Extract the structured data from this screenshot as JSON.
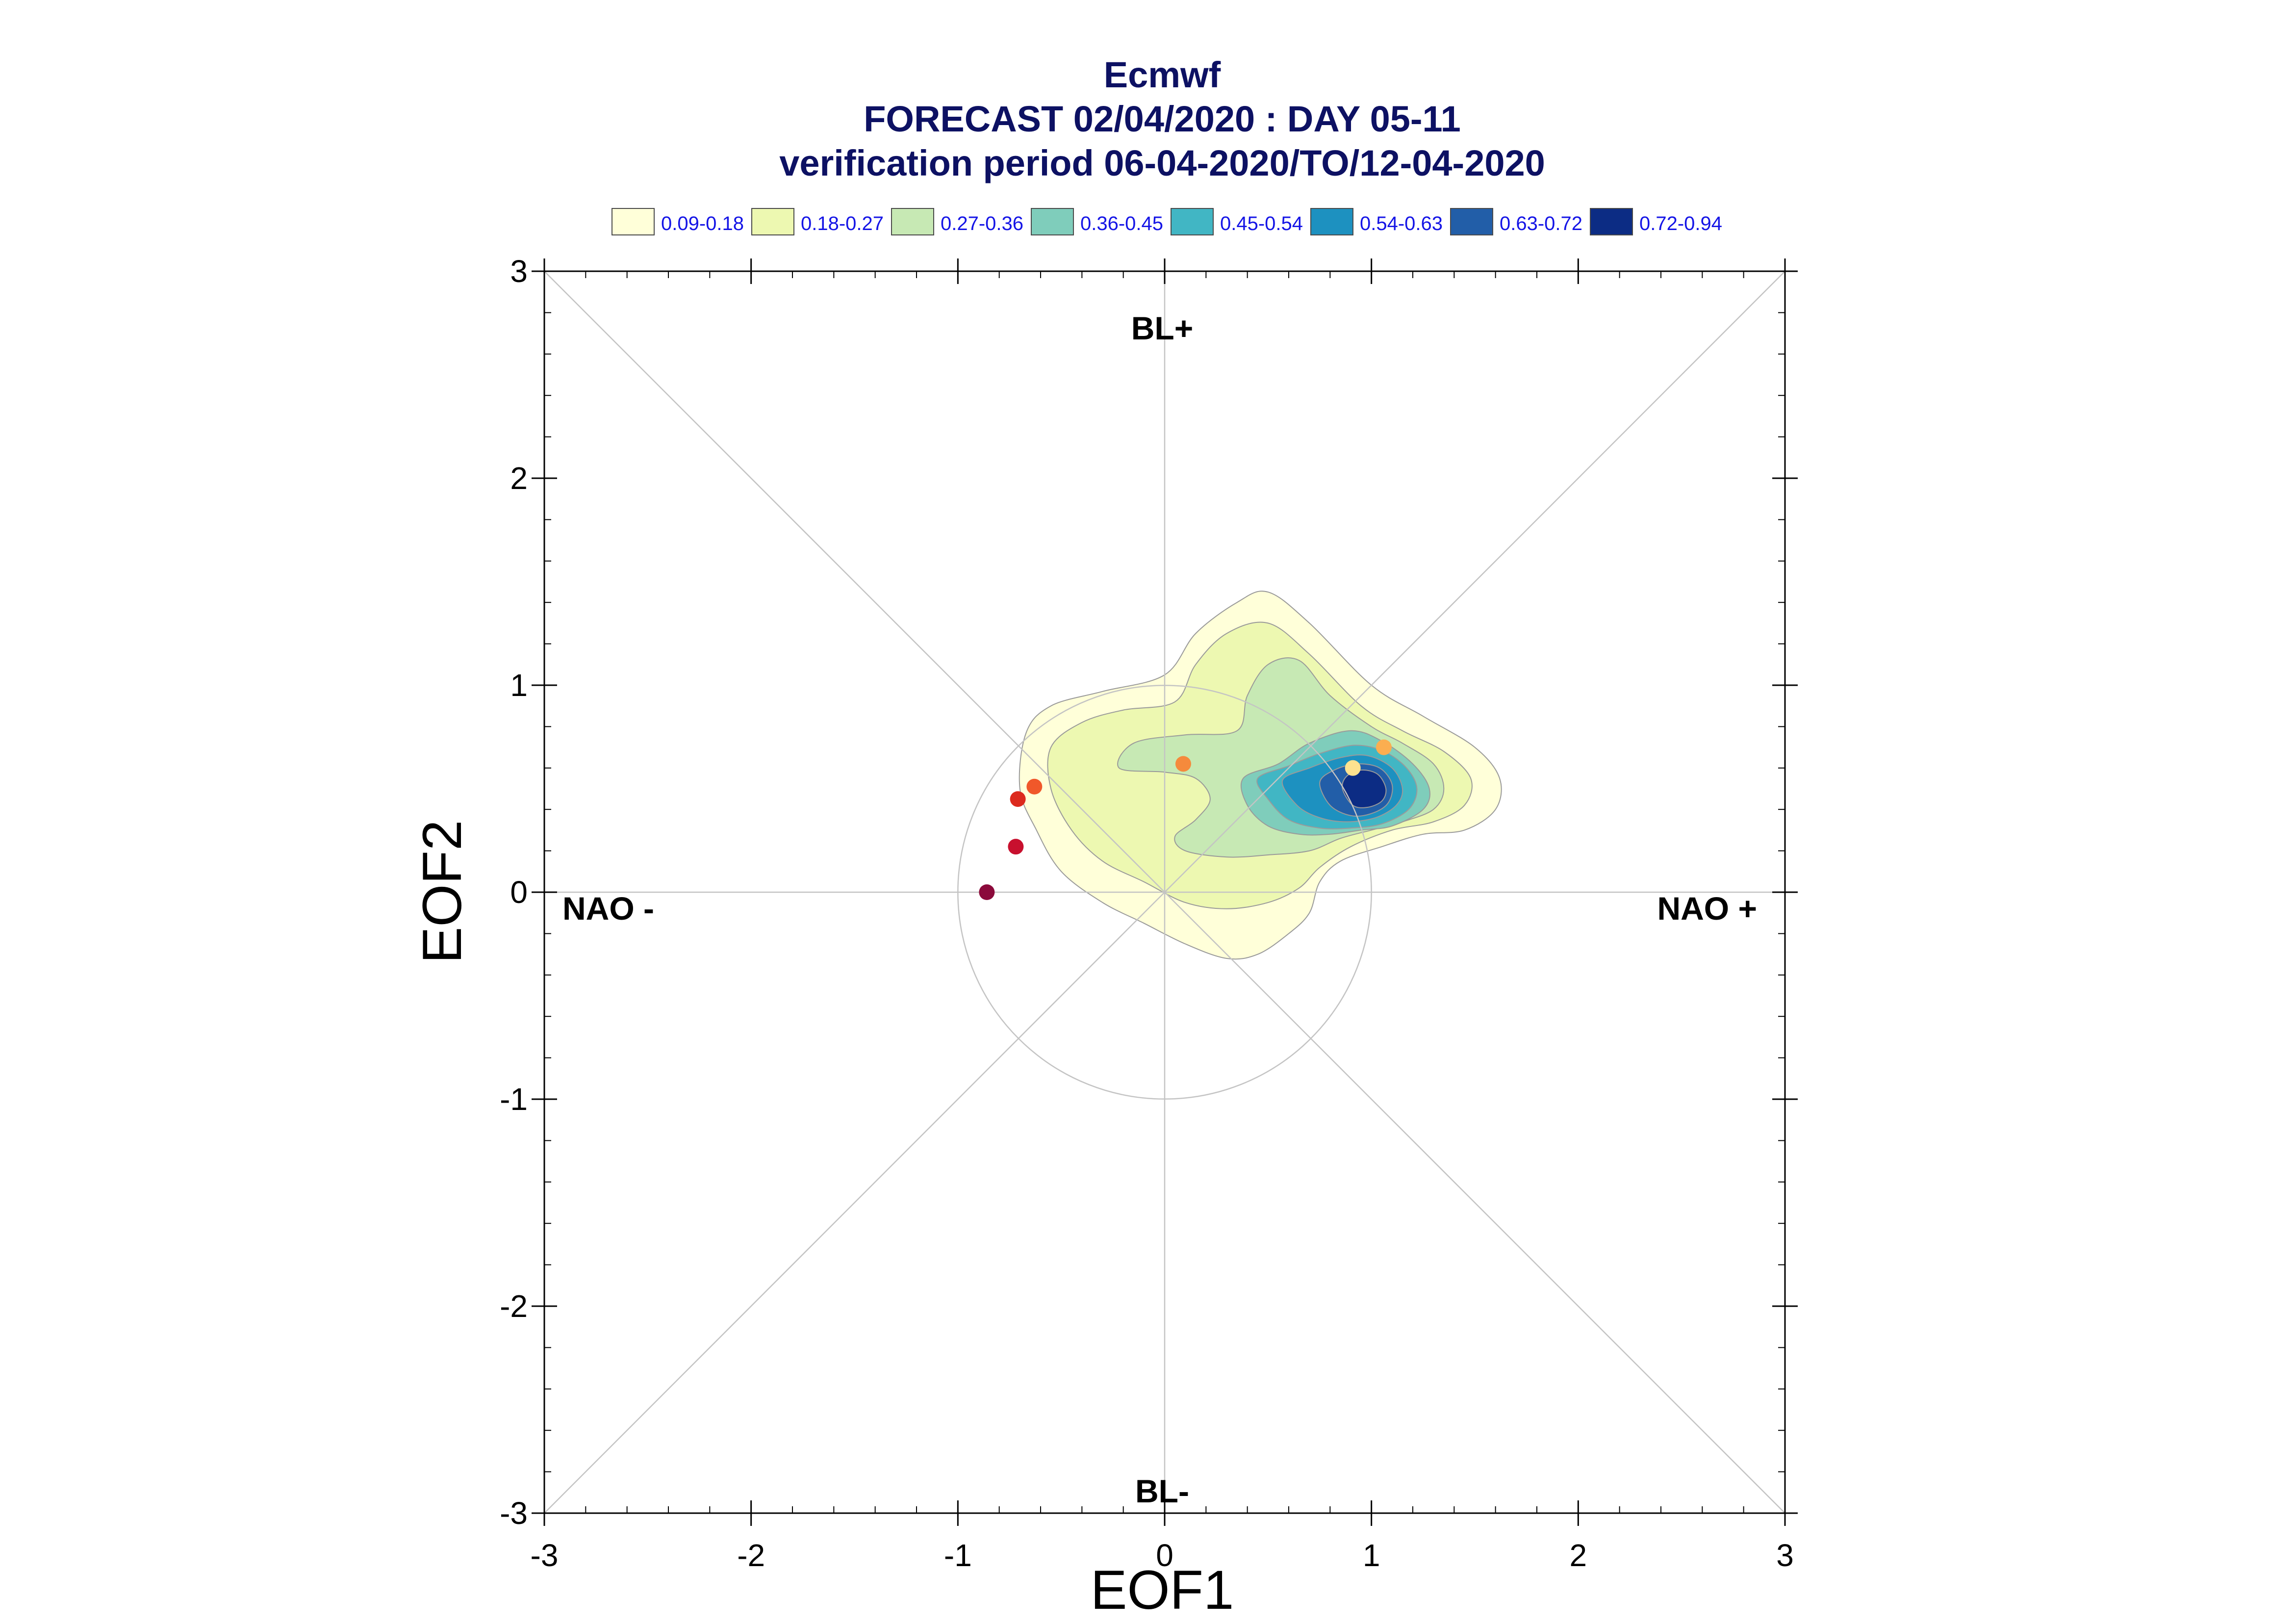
{
  "title": {
    "line1": "Ecmwf",
    "line2": "FORECAST 02/04/2020 : DAY 05-11",
    "line3": "verification period 06-04-2020/TO/12-04-2020"
  },
  "legend": [
    {
      "label": "0.09-0.18",
      "color": "#ffffd9"
    },
    {
      "label": "0.18-0.27",
      "color": "#edf8b1"
    },
    {
      "label": "0.27-0.36",
      "color": "#c7e9b4"
    },
    {
      "label": "0.36-0.45",
      "color": "#7fcdbb"
    },
    {
      "label": "0.45-0.54",
      "color": "#41b6c4"
    },
    {
      "label": "0.54-0.63",
      "color": "#1d91c0"
    },
    {
      "label": "0.63-0.72",
      "color": "#225ea8"
    },
    {
      "label": "0.72-0.94",
      "color": "#0c2c84"
    }
  ],
  "regimes": {
    "top": "BL+",
    "bottom": "BL-",
    "left": "NAO -",
    "right": "NAO +"
  },
  "chart_data": {
    "type": "scatter",
    "xlabel": "EOF1",
    "ylabel": "EOF2",
    "xlim": [
      -3,
      3
    ],
    "ylim": [
      -3,
      3
    ],
    "xticks": [
      "-3",
      "-2",
      "-1",
      "0",
      "1",
      "2",
      "3"
    ],
    "yticks": [
      "-3",
      "-2",
      "-1",
      "0",
      "1",
      "2",
      "3"
    ],
    "grid": "diagonals, axes and unit circle",
    "density_levels": [
      0.09,
      0.18,
      0.27,
      0.36,
      0.45,
      0.54,
      0.63,
      0.72,
      0.94
    ],
    "density_contours": [
      {
        "level": "0.09-0.18",
        "color": "#ffffd9",
        "points": [
          [
            -0.67,
            0.77
          ],
          [
            -0.55,
            0.9
          ],
          [
            -0.3,
            0.97
          ],
          [
            0.0,
            1.05
          ],
          [
            0.15,
            1.25
          ],
          [
            0.35,
            1.4
          ],
          [
            0.5,
            1.45
          ],
          [
            0.7,
            1.3
          ],
          [
            1.0,
            1.0
          ],
          [
            1.25,
            0.85
          ],
          [
            1.5,
            0.7
          ],
          [
            1.62,
            0.55
          ],
          [
            1.6,
            0.4
          ],
          [
            1.45,
            0.3
          ],
          [
            1.25,
            0.28
          ],
          [
            1.05,
            0.22
          ],
          [
            0.85,
            0.15
          ],
          [
            0.75,
            0.05
          ],
          [
            0.7,
            -0.1
          ],
          [
            0.6,
            -0.2
          ],
          [
            0.45,
            -0.3
          ],
          [
            0.3,
            -0.32
          ],
          [
            0.1,
            -0.25
          ],
          [
            -0.1,
            -0.15
          ],
          [
            -0.3,
            -0.05
          ],
          [
            -0.5,
            0.1
          ],
          [
            -0.62,
            0.3
          ],
          [
            -0.7,
            0.5
          ]
        ]
      },
      {
        "level": "0.18-0.27",
        "color": "#edf8b1",
        "points": [
          [
            -0.55,
            0.7
          ],
          [
            -0.4,
            0.82
          ],
          [
            -0.2,
            0.88
          ],
          [
            0.05,
            0.92
          ],
          [
            0.15,
            1.1
          ],
          [
            0.3,
            1.25
          ],
          [
            0.5,
            1.3
          ],
          [
            0.7,
            1.15
          ],
          [
            0.95,
            0.9
          ],
          [
            1.15,
            0.78
          ],
          [
            1.35,
            0.68
          ],
          [
            1.48,
            0.55
          ],
          [
            1.45,
            0.42
          ],
          [
            1.3,
            0.34
          ],
          [
            1.1,
            0.3
          ],
          [
            0.9,
            0.22
          ],
          [
            0.75,
            0.12
          ],
          [
            0.65,
            0.02
          ],
          [
            0.5,
            -0.05
          ],
          [
            0.3,
            -0.08
          ],
          [
            0.1,
            -0.05
          ],
          [
            -0.1,
            0.05
          ],
          [
            -0.3,
            0.15
          ],
          [
            -0.45,
            0.3
          ],
          [
            -0.55,
            0.5
          ]
        ]
      },
      {
        "level": "0.27-0.36",
        "color": "#c7e9b4",
        "points": [
          [
            -0.22,
            0.6
          ],
          [
            -0.15,
            0.72
          ],
          [
            0.1,
            0.76
          ],
          [
            0.35,
            0.78
          ],
          [
            0.4,
            0.95
          ],
          [
            0.5,
            1.1
          ],
          [
            0.65,
            1.12
          ],
          [
            0.8,
            0.95
          ],
          [
            1.0,
            0.8
          ],
          [
            1.15,
            0.72
          ],
          [
            1.3,
            0.62
          ],
          [
            1.35,
            0.5
          ],
          [
            1.3,
            0.4
          ],
          [
            1.15,
            0.34
          ],
          [
            1.0,
            0.3
          ],
          [
            0.85,
            0.26
          ],
          [
            0.7,
            0.2
          ],
          [
            0.5,
            0.18
          ],
          [
            0.3,
            0.17
          ],
          [
            0.1,
            0.2
          ],
          [
            0.05,
            0.27
          ],
          [
            0.15,
            0.35
          ],
          [
            0.22,
            0.45
          ],
          [
            0.15,
            0.55
          ],
          [
            0.0,
            0.58
          ]
        ]
      },
      {
        "level": "0.36-0.45",
        "color": "#7fcdbb",
        "points": [
          [
            0.38,
            0.55
          ],
          [
            0.55,
            0.62
          ],
          [
            0.7,
            0.72
          ],
          [
            0.9,
            0.78
          ],
          [
            1.05,
            0.73
          ],
          [
            1.2,
            0.62
          ],
          [
            1.28,
            0.5
          ],
          [
            1.25,
            0.4
          ],
          [
            1.1,
            0.32
          ],
          [
            0.95,
            0.3
          ],
          [
            0.8,
            0.28
          ],
          [
            0.65,
            0.28
          ],
          [
            0.5,
            0.32
          ],
          [
            0.4,
            0.42
          ]
        ]
      },
      {
        "level": "0.45-0.54",
        "color": "#41b6c4",
        "points": [
          [
            0.45,
            0.55
          ],
          [
            0.6,
            0.61
          ],
          [
            0.75,
            0.67
          ],
          [
            0.92,
            0.71
          ],
          [
            1.06,
            0.68
          ],
          [
            1.17,
            0.6
          ],
          [
            1.22,
            0.5
          ],
          [
            1.18,
            0.4
          ],
          [
            1.05,
            0.33
          ],
          [
            0.9,
            0.31
          ],
          [
            0.75,
            0.31
          ],
          [
            0.6,
            0.35
          ],
          [
            0.5,
            0.45
          ]
        ]
      },
      {
        "level": "0.54-0.63",
        "color": "#1d91c0",
        "points": [
          [
            0.57,
            0.54
          ],
          [
            0.7,
            0.6
          ],
          [
            0.85,
            0.65
          ],
          [
            0.98,
            0.66
          ],
          [
            1.1,
            0.6
          ],
          [
            1.15,
            0.5
          ],
          [
            1.12,
            0.42
          ],
          [
            1.02,
            0.36
          ],
          [
            0.88,
            0.34
          ],
          [
            0.75,
            0.36
          ],
          [
            0.64,
            0.42
          ]
        ]
      },
      {
        "level": "0.63-0.72",
        "color": "#225ea8",
        "points": [
          [
            0.75,
            0.53
          ],
          [
            0.82,
            0.59
          ],
          [
            0.93,
            0.62
          ],
          [
            1.04,
            0.6
          ],
          [
            1.1,
            0.52
          ],
          [
            1.08,
            0.43
          ],
          [
            1.0,
            0.38
          ],
          [
            0.9,
            0.37
          ],
          [
            0.8,
            0.42
          ]
        ]
      },
      {
        "level": "0.72-0.94",
        "color": "#0c2c84",
        "points": [
          [
            0.86,
            0.5
          ],
          [
            0.88,
            0.56
          ],
          [
            0.95,
            0.59
          ],
          [
            1.03,
            0.57
          ],
          [
            1.07,
            0.5
          ],
          [
            1.05,
            0.44
          ],
          [
            0.98,
            0.41
          ],
          [
            0.91,
            0.42
          ]
        ]
      }
    ],
    "series": [
      {
        "values": [
          {
            "x": -0.86,
            "y": 0.0,
            "color": "#8b0a3b"
          },
          {
            "x": -0.72,
            "y": 0.22,
            "color": "#c8102e"
          },
          {
            "x": -0.71,
            "y": 0.45,
            "color": "#dc2a1e"
          },
          {
            "x": -0.63,
            "y": 0.51,
            "color": "#f0582a"
          },
          {
            "x": 0.09,
            "y": 0.62,
            "color": "#f58a3c"
          },
          {
            "x": 1.06,
            "y": 0.7,
            "color": "#fbae50"
          },
          {
            "x": 0.91,
            "y": 0.6,
            "color": "#fde28f"
          }
        ]
      }
    ]
  }
}
